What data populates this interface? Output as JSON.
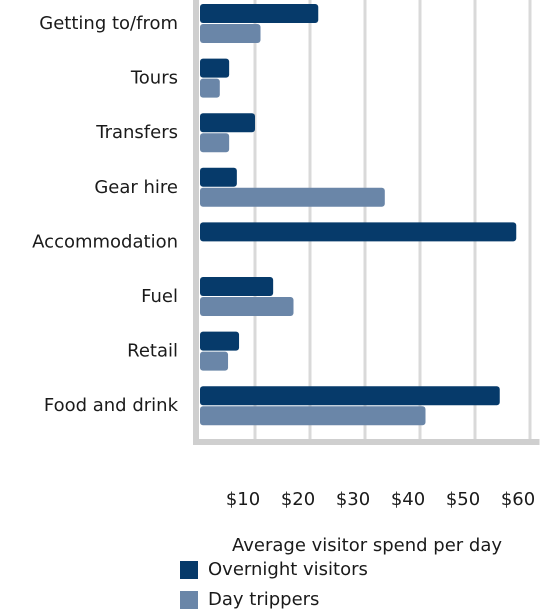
{
  "chart_data": {
    "type": "hbar",
    "x_label": "Average visitor spend per day",
    "categories": [
      "Getting to/from",
      "Tours",
      "Transfers",
      "Gear hire",
      "Accommodation",
      "Fuel",
      "Retail",
      "Food and drink"
    ],
    "series": [
      {
        "name": "Overnight visitors",
        "color": "#063a6a",
        "values": [
          21.5,
          5.3,
          10,
          6.7,
          57.5,
          13.3,
          7.1,
          54.5
        ]
      },
      {
        "name": "Day trippers",
        "color": "#6a86a8",
        "values": [
          11,
          3.6,
          5.3,
          33.6,
          0,
          17,
          5.1,
          41
        ]
      }
    ],
    "xlim": [
      0,
      61
    ],
    "xticks": [
      {
        "value": 10,
        "label": "$10"
      },
      {
        "value": 20,
        "label": "$20"
      },
      {
        "value": 30,
        "label": "$30"
      },
      {
        "value": 40,
        "label": "$40"
      },
      {
        "value": 50,
        "label": "$50"
      },
      {
        "value": 60,
        "label": "$60"
      }
    ],
    "grid": true,
    "legend": "bottom"
  }
}
